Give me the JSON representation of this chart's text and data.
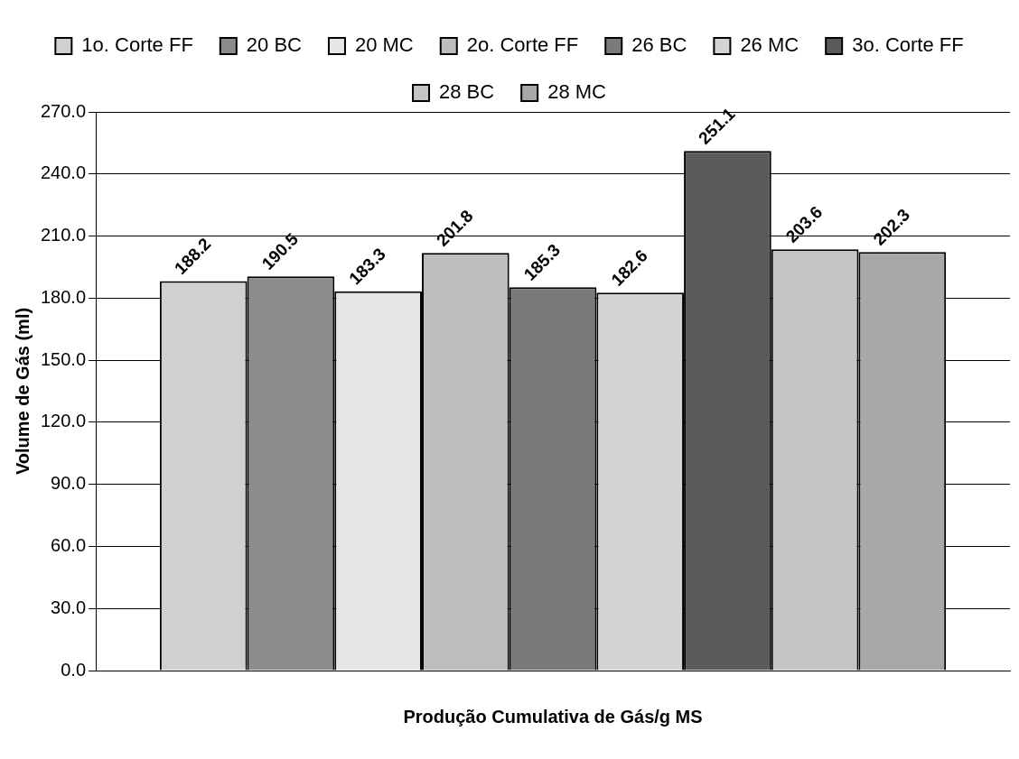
{
  "chart_data": {
    "type": "bar",
    "xlabel": "Produção Cumulativa de Gás/g MS",
    "ylabel": "Volume de Gás (ml)",
    "categories": [
      null
    ],
    "series": [
      {
        "name": "1o. Corte FF",
        "color": "#d0d0d0",
        "values": [
          188.2
        ]
      },
      {
        "name": "20 BC",
        "color": "#8c8c8c",
        "values": [
          190.5
        ]
      },
      {
        "name": "20 MC",
        "color": "#e6e6e6",
        "values": [
          183.3
        ]
      },
      {
        "name": "2o. Corte FF",
        "color": "#bdbdbd",
        "values": [
          201.8
        ]
      },
      {
        "name": "26 BC",
        "color": "#7a7a7a",
        "values": [
          185.3
        ]
      },
      {
        "name": "26 MC",
        "color": "#d4d4d4",
        "values": [
          182.6
        ]
      },
      {
        "name": "3o. Corte FF",
        "color": "#5a5a5a",
        "values": [
          251.1
        ]
      },
      {
        "name": "28 BC",
        "color": "#c4c4c4",
        "values": [
          203.6
        ]
      },
      {
        "name": "28 MC",
        "color": "#a8a8a8",
        "values": [
          202.3
        ]
      }
    ],
    "ylim": [
      0,
      270
    ],
    "yticks": [
      {
        "value": 0,
        "label": "0.0"
      },
      {
        "value": 30,
        "label": "30.0"
      },
      {
        "value": 60,
        "label": "60.0"
      },
      {
        "value": 90,
        "label": "90.0"
      },
      {
        "value": 120,
        "label": "120.0"
      },
      {
        "value": 150,
        "label": "150.0"
      },
      {
        "value": 180,
        "label": "180.0"
      },
      {
        "value": 210,
        "label": "210.0"
      },
      {
        "value": 240,
        "label": "240.0"
      },
      {
        "value": 270,
        "label": "270.0"
      }
    ],
    "grid": "y",
    "legend": "top",
    "data_labels": true
  }
}
